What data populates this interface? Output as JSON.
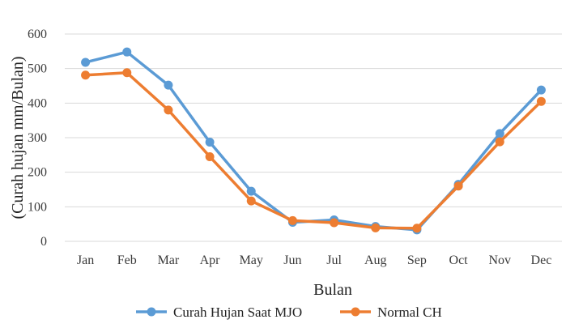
{
  "chart_data": {
    "type": "line",
    "categories": [
      "Jan",
      "Feb",
      "Mar",
      "Apr",
      "May",
      "Jun",
      "Jul",
      "Aug",
      "Sep",
      "Oct",
      "Nov",
      "Dec"
    ],
    "series": [
      {
        "name": "Curah Hujan Saat MJO",
        "color": "#5b9bd5",
        "values": [
          518,
          548,
          452,
          287,
          145,
          55,
          62,
          43,
          33,
          165,
          312,
          438
        ]
      },
      {
        "name": "Normal CH",
        "color": "#ed7d31",
        "values": [
          481,
          488,
          380,
          245,
          117,
          60,
          54,
          39,
          38,
          160,
          288,
          405
        ]
      }
    ],
    "xlabel": "Bulan",
    "ylabel": "(Curah hujan mm/Bulan)",
    "ylim": [
      0,
      600
    ],
    "yticks": [
      0,
      100,
      200,
      300,
      400,
      500,
      600
    ],
    "grid": true,
    "legend_position": "bottom"
  }
}
